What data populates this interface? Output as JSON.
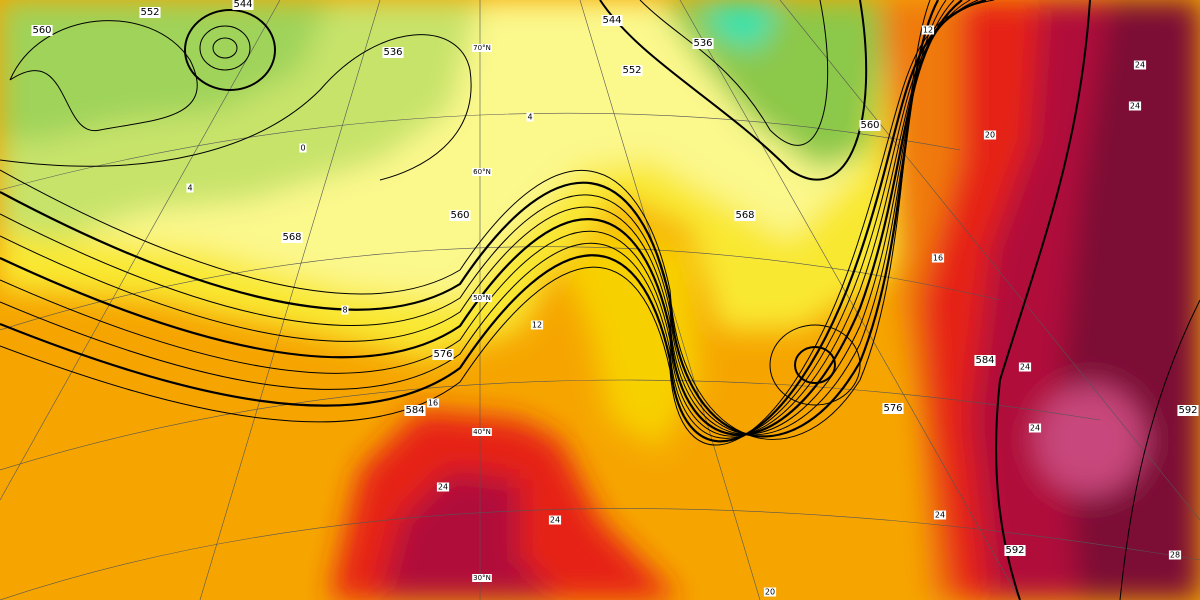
{
  "contour_labels": [
    552,
    560,
    544,
    536,
    560,
    568,
    576,
    584,
    544,
    552,
    536,
    568,
    560,
    576,
    584,
    592,
    592
  ],
  "latitude_labels": [
    "70°N",
    "60°N",
    "50°N",
    "40°N",
    "30°N"
  ],
  "temperature_labels": [
    0,
    4,
    4,
    8,
    12,
    16,
    12,
    20,
    16,
    24,
    24,
    24,
    20,
    24,
    24,
    24,
    24,
    28
  ]
}
